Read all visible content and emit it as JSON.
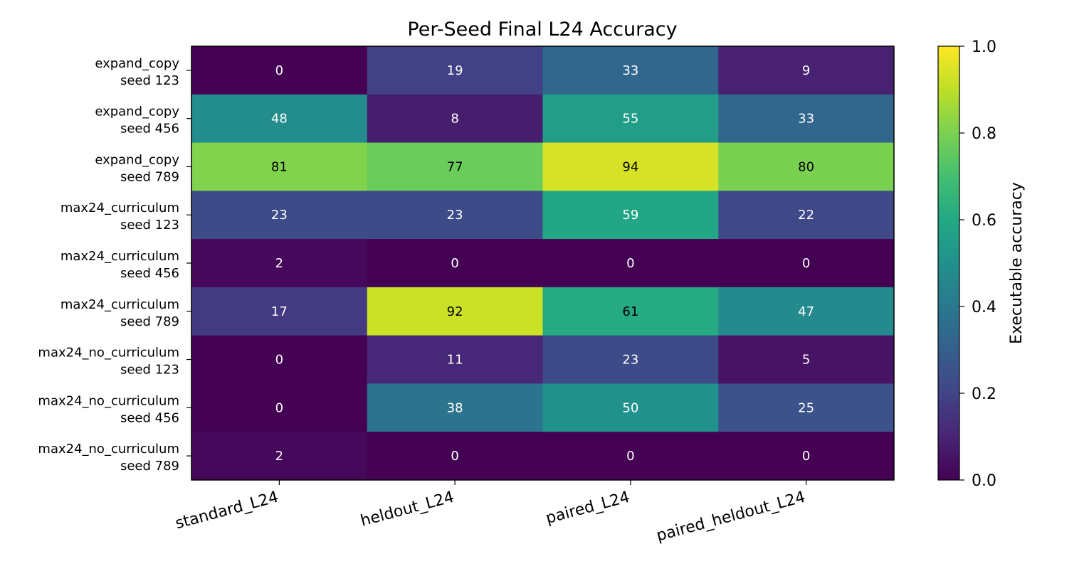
{
  "chart_data": {
    "type": "heatmap",
    "title": "Per-Seed Final L24 Accuracy",
    "columns": [
      "standard_L24",
      "heldout_L24",
      "paired_L24",
      "paired_heldout_L24"
    ],
    "rows": [
      {
        "name": "expand_copy",
        "seed": "seed 123"
      },
      {
        "name": "expand_copy",
        "seed": "seed 456"
      },
      {
        "name": "expand_copy",
        "seed": "seed 789"
      },
      {
        "name": "max24_curriculum",
        "seed": "seed 123"
      },
      {
        "name": "max24_curriculum",
        "seed": "seed 456"
      },
      {
        "name": "max24_curriculum",
        "seed": "seed 789"
      },
      {
        "name": "max24_no_curriculum",
        "seed": "seed 123"
      },
      {
        "name": "max24_no_curriculum",
        "seed": "seed 456"
      },
      {
        "name": "max24_no_curriculum",
        "seed": "seed 789"
      }
    ],
    "values": [
      [
        0.0,
        0.19,
        0.33,
        0.09
      ],
      [
        0.48,
        0.08,
        0.55,
        0.33
      ],
      [
        0.81,
        0.77,
        0.94,
        0.8
      ],
      [
        0.23,
        0.23,
        0.59,
        0.22
      ],
      [
        0.02,
        0.0,
        0.0,
        0.0
      ],
      [
        0.17,
        0.92,
        0.61,
        0.47
      ],
      [
        0.0,
        0.11,
        0.23,
        0.05
      ],
      [
        0.0,
        0.38,
        0.5,
        0.25
      ],
      [
        0.02,
        0.0,
        0.0,
        0.0
      ]
    ],
    "cell_labels": [
      [
        "0",
        "19",
        "33",
        "9"
      ],
      [
        "48",
        "8",
        "55",
        "33"
      ],
      [
        "81",
        "77",
        "94",
        "80"
      ],
      [
        "23",
        "23",
        "59",
        "22"
      ],
      [
        "2",
        "0",
        "0",
        "0"
      ],
      [
        "17",
        "92",
        "61",
        "47"
      ],
      [
        "0",
        "11",
        "23",
        "5"
      ],
      [
        "0",
        "38",
        "50",
        "25"
      ],
      [
        "2",
        "0",
        "0",
        "0"
      ]
    ],
    "colormap": "viridis",
    "colorbar": {
      "label": "Executable accuracy",
      "range": [
        0,
        1
      ],
      "ticks": [
        "0.0",
        "0.2",
        "0.4",
        "0.6",
        "0.8",
        "1.0"
      ]
    }
  }
}
